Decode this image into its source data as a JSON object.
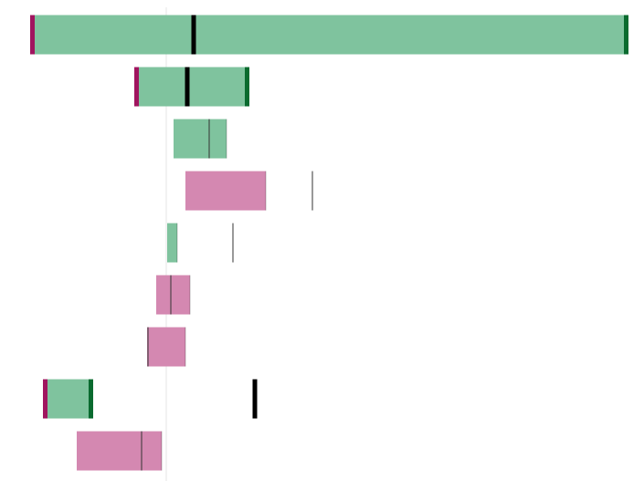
{
  "chart_data": {
    "type": "range_bar",
    "start": [
      -149,
      -35,
      8,
      21,
      1,
      -11,
      -21,
      -135,
      -98
    ],
    "end": [
      506,
      91,
      66,
      109,
      12,
      26,
      21,
      -80,
      -5
    ],
    "marker": [
      30,
      23,
      47,
      160,
      73,
      5,
      -20,
      97,
      -27
    ],
    "colors": [
      "#7fc39e",
      "#7fc39e",
      "#7fc39e",
      "#d488b1",
      "#7fc39e",
      "#d488b1",
      "#d488b1",
      "#7fc39e",
      "#d488b1"
    ],
    "highlight": [
      true,
      true,
      false,
      false,
      false,
      false,
      false,
      true,
      false
    ],
    "start_cap_color": "#a0155f",
    "end_cap_color": "#0a6b2f",
    "xlim": [
      -149,
      523
    ]
  }
}
